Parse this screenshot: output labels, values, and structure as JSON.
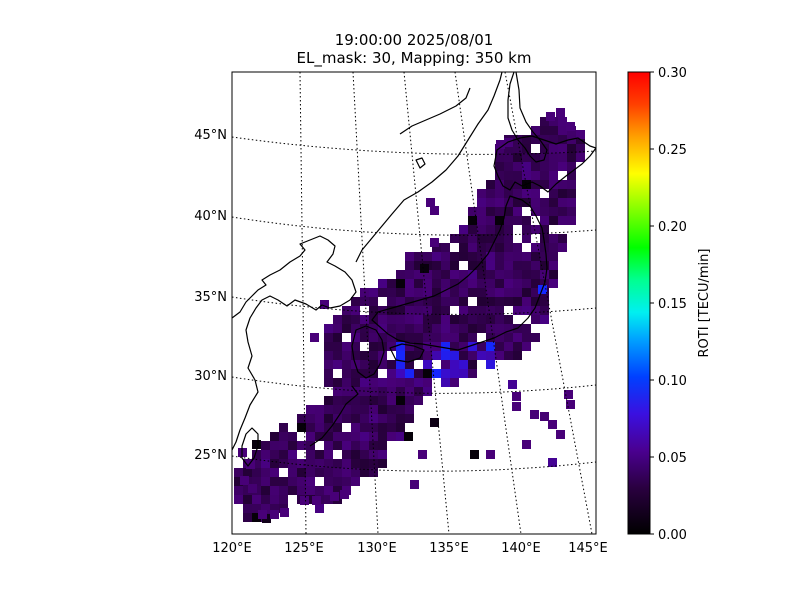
{
  "title": {
    "line1": "19:00:00 2025/08/01",
    "line2": "EL_mask: 30, Mapping: 350 km"
  },
  "map": {
    "lon_labels": [
      "120°E",
      "125°E",
      "130°E",
      "135°E",
      "140°E",
      "145°E"
    ],
    "lat_labels": [
      "25°N",
      "30°N",
      "35°N",
      "40°N",
      "45°N"
    ],
    "graticule": "dotted",
    "coastline_color": "#000000"
  },
  "colorbar": {
    "label": "ROTI [TECU/min]",
    "min": 0.0,
    "max": 0.3,
    "ticks": [
      "0.00",
      "0.05",
      "0.10",
      "0.15",
      "0.20",
      "0.25",
      "0.30"
    ],
    "colormap": "gist_ncar-like (black → purple → blue → cyan → green → yellow → red)"
  },
  "chart_data": {
    "type": "heatmap",
    "title": "19:00:00 2025/08/01\nEL_mask: 30, Mapping: 350 km",
    "xlabel": "",
    "ylabel": "",
    "xlim_deg": [
      120,
      145
    ],
    "ylim_deg": [
      20,
      49
    ],
    "value_label": "ROTI [TECU/min]",
    "value_range": [
      0.0,
      0.3
    ],
    "typical_value": 0.02,
    "notes_values": {
      "max_cell_value_approx": 0.06,
      "min_cell_value_approx": 0.0
    }
  }
}
